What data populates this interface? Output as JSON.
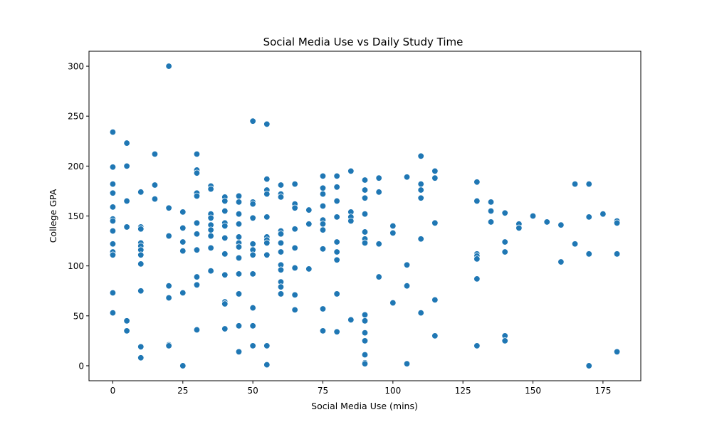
{
  "chart_data": {
    "type": "scatter",
    "title": "Social Media Use vs Daily Study Time",
    "xlabel": "Social Media Use (mins)",
    "ylabel": "College GPA",
    "xlim": [
      -8.5,
      188.5
    ],
    "ylim": [
      -15,
      315
    ],
    "xticks": [
      0,
      25,
      50,
      75,
      100,
      125,
      150,
      175
    ],
    "yticks": [
      0,
      50,
      100,
      150,
      200,
      250,
      300
    ],
    "grid": false,
    "legend": "none",
    "point_color": "#1f77b4",
    "points": [
      [
        0,
        234
      ],
      [
        0,
        199
      ],
      [
        0,
        182
      ],
      [
        0,
        173
      ],
      [
        0,
        159
      ],
      [
        0,
        147
      ],
      [
        0,
        145
      ],
      [
        0,
        135
      ],
      [
        0,
        122
      ],
      [
        0,
        114
      ],
      [
        0,
        111
      ],
      [
        0,
        73
      ],
      [
        0,
        53
      ],
      [
        5,
        223
      ],
      [
        5,
        200
      ],
      [
        5,
        165
      ],
      [
        5,
        139
      ],
      [
        5,
        45
      ],
      [
        5,
        35
      ],
      [
        10,
        174
      ],
      [
        10,
        139
      ],
      [
        10,
        137
      ],
      [
        10,
        123
      ],
      [
        10,
        120
      ],
      [
        10,
        116
      ],
      [
        10,
        111
      ],
      [
        10,
        102
      ],
      [
        10,
        75
      ],
      [
        10,
        19
      ],
      [
        10,
        8
      ],
      [
        15,
        212
      ],
      [
        15,
        181
      ],
      [
        15,
        167
      ],
      [
        20,
        300
      ],
      [
        20,
        158
      ],
      [
        20,
        130
      ],
      [
        20,
        80
      ],
      [
        20,
        68
      ],
      [
        20,
        21
      ],
      [
        20,
        20
      ],
      [
        25,
        154
      ],
      [
        25,
        138
      ],
      [
        25,
        124
      ],
      [
        25,
        115
      ],
      [
        25,
        73
      ],
      [
        25,
        0
      ],
      [
        30,
        212
      ],
      [
        30,
        196
      ],
      [
        30,
        193
      ],
      [
        30,
        173
      ],
      [
        30,
        170
      ],
      [
        30,
        143
      ],
      [
        30,
        132
      ],
      [
        30,
        116
      ],
      [
        30,
        89
      ],
      [
        30,
        81
      ],
      [
        30,
        36
      ],
      [
        35,
        180
      ],
      [
        35,
        177
      ],
      [
        35,
        152
      ],
      [
        35,
        148
      ],
      [
        35,
        141
      ],
      [
        35,
        136
      ],
      [
        35,
        130
      ],
      [
        35,
        118
      ],
      [
        35,
        95
      ],
      [
        40,
        169
      ],
      [
        40,
        165
      ],
      [
        40,
        155
      ],
      [
        40,
        143
      ],
      [
        40,
        140
      ],
      [
        40,
        128
      ],
      [
        40,
        112
      ],
      [
        40,
        91
      ],
      [
        40,
        64
      ],
      [
        40,
        62
      ],
      [
        40,
        37
      ],
      [
        45,
        170
      ],
      [
        45,
        164
      ],
      [
        45,
        152
      ],
      [
        45,
        142
      ],
      [
        45,
        129
      ],
      [
        45,
        123
      ],
      [
        45,
        119
      ],
      [
        45,
        108
      ],
      [
        45,
        92
      ],
      [
        45,
        72
      ],
      [
        45,
        40
      ],
      [
        45,
        14
      ],
      [
        50,
        245
      ],
      [
        50,
        164
      ],
      [
        50,
        162
      ],
      [
        50,
        148
      ],
      [
        50,
        122
      ],
      [
        50,
        116
      ],
      [
        50,
        111
      ],
      [
        50,
        92
      ],
      [
        50,
        58
      ],
      [
        50,
        40
      ],
      [
        50,
        20
      ],
      [
        55,
        242
      ],
      [
        55,
        187
      ],
      [
        55,
        176
      ],
      [
        55,
        172
      ],
      [
        55,
        149
      ],
      [
        55,
        129
      ],
      [
        55,
        126
      ],
      [
        55,
        123
      ],
      [
        55,
        111
      ],
      [
        55,
        20
      ],
      [
        55,
        1
      ],
      [
        60,
        181
      ],
      [
        60,
        172
      ],
      [
        60,
        169
      ],
      [
        60,
        135
      ],
      [
        60,
        132
      ],
      [
        60,
        123
      ],
      [
        60,
        114
      ],
      [
        60,
        101
      ],
      [
        60,
        96
      ],
      [
        60,
        84
      ],
      [
        60,
        79
      ],
      [
        60,
        72
      ],
      [
        65,
        182
      ],
      [
        65,
        162
      ],
      [
        65,
        158
      ],
      [
        65,
        137
      ],
      [
        65,
        118
      ],
      [
        65,
        98
      ],
      [
        65,
        71
      ],
      [
        65,
        56
      ],
      [
        70,
        156
      ],
      [
        70,
        142
      ],
      [
        70,
        97
      ],
      [
        75,
        190
      ],
      [
        75,
        178
      ],
      [
        75,
        172
      ],
      [
        75,
        160
      ],
      [
        75,
        146
      ],
      [
        75,
        142
      ],
      [
        75,
        136
      ],
      [
        75,
        117
      ],
      [
        75,
        57
      ],
      [
        75,
        35
      ],
      [
        80,
        190
      ],
      [
        80,
        179
      ],
      [
        80,
        165
      ],
      [
        80,
        149
      ],
      [
        80,
        124
      ],
      [
        80,
        114
      ],
      [
        80,
        106
      ],
      [
        80,
        72
      ],
      [
        80,
        34
      ],
      [
        85,
        195
      ],
      [
        85,
        154
      ],
      [
        85,
        149
      ],
      [
        85,
        145
      ],
      [
        85,
        46
      ],
      [
        90,
        186
      ],
      [
        90,
        176
      ],
      [
        90,
        168
      ],
      [
        90,
        152
      ],
      [
        90,
        134
      ],
      [
        90,
        127
      ],
      [
        90,
        123
      ],
      [
        90,
        51
      ],
      [
        90,
        45
      ],
      [
        90,
        33
      ],
      [
        90,
        25
      ],
      [
        90,
        11
      ],
      [
        90,
        3
      ],
      [
        90,
        2
      ],
      [
        95,
        188
      ],
      [
        95,
        174
      ],
      [
        95,
        122
      ],
      [
        95,
        89
      ],
      [
        100,
        140
      ],
      [
        100,
        133
      ],
      [
        100,
        63
      ],
      [
        105,
        189
      ],
      [
        105,
        101
      ],
      [
        105,
        80
      ],
      [
        105,
        2
      ],
      [
        110,
        210
      ],
      [
        110,
        182
      ],
      [
        110,
        176
      ],
      [
        110,
        168
      ],
      [
        110,
        127
      ],
      [
        110,
        53
      ],
      [
        115,
        195
      ],
      [
        115,
        188
      ],
      [
        115,
        143
      ],
      [
        115,
        66
      ],
      [
        115,
        30
      ],
      [
        130,
        184
      ],
      [
        130,
        165
      ],
      [
        130,
        112
      ],
      [
        130,
        110
      ],
      [
        130,
        107
      ],
      [
        130,
        87
      ],
      [
        130,
        20
      ],
      [
        135,
        164
      ],
      [
        135,
        155
      ],
      [
        135,
        144
      ],
      [
        140,
        153
      ],
      [
        140,
        124
      ],
      [
        140,
        114
      ],
      [
        140,
        30
      ],
      [
        140,
        25
      ],
      [
        145,
        142
      ],
      [
        145,
        138
      ],
      [
        150,
        150
      ],
      [
        155,
        144
      ],
      [
        160,
        141
      ],
      [
        160,
        104
      ],
      [
        165,
        182
      ],
      [
        165,
        122
      ],
      [
        170,
        182
      ],
      [
        170,
        149
      ],
      [
        170,
        112
      ],
      [
        170,
        0
      ],
      [
        175,
        152
      ],
      [
        180,
        145
      ],
      [
        180,
        143
      ],
      [
        180,
        112
      ],
      [
        180,
        14
      ]
    ]
  }
}
